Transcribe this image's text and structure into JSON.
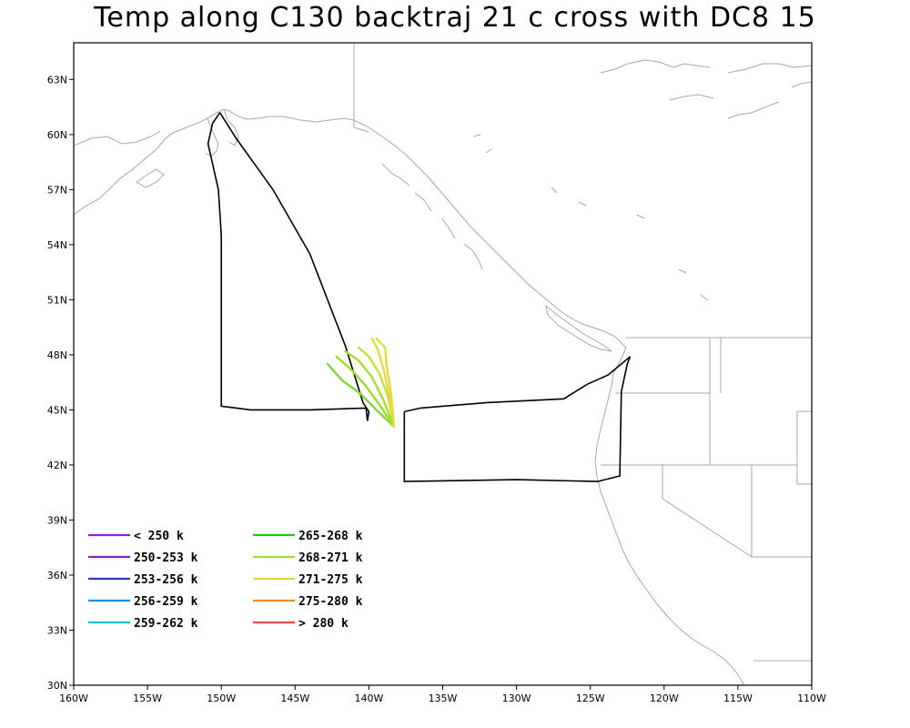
{
  "title": "Temp along C130 backtraj 21 c cross with DC8 15",
  "map": {
    "lon_range": [
      -160,
      -110
    ],
    "lat_range": [
      30,
      65
    ],
    "x_ticks": [
      {
        "lon": -160,
        "label": "160W"
      },
      {
        "lon": -155,
        "label": "155W"
      },
      {
        "lon": -150,
        "label": "150W"
      },
      {
        "lon": -145,
        "label": "145W"
      },
      {
        "lon": -140,
        "label": "140W"
      },
      {
        "lon": -135,
        "label": "135W"
      },
      {
        "lon": -130,
        "label": "130W"
      },
      {
        "lon": -125,
        "label": "125W"
      },
      {
        "lon": -120,
        "label": "120W"
      },
      {
        "lon": -115,
        "label": "115W"
      },
      {
        "lon": -110,
        "label": "110W"
      }
    ],
    "y_ticks": [
      {
        "lat": 30,
        "label": "30N"
      },
      {
        "lat": 33,
        "label": "33N"
      },
      {
        "lat": 36,
        "label": "36N"
      },
      {
        "lat": 39,
        "label": "39N"
      },
      {
        "lat": 42,
        "label": "42N"
      },
      {
        "lat": 45,
        "label": "45N"
      },
      {
        "lat": 48,
        "label": "48N"
      },
      {
        "lat": 51,
        "label": "51N"
      },
      {
        "lat": 54,
        "label": "54N"
      },
      {
        "lat": 57,
        "label": "57N"
      },
      {
        "lat": 60,
        "label": "60N"
      },
      {
        "lat": 63,
        "label": "63N"
      }
    ],
    "colors": {
      "coast": "#a8a8a8",
      "track": "#000000"
    }
  },
  "flight_track": [
    [
      -150.1,
      61.2
    ],
    [
      -150.6,
      60.6
    ],
    [
      -150.9,
      59.5
    ],
    [
      -150.2,
      57.0
    ],
    [
      -150.0,
      54.5
    ],
    [
      -150.0,
      45.2
    ],
    [
      -148.0,
      45.0
    ],
    [
      -144.0,
      45.0
    ],
    [
      -140.2,
      45.1
    ],
    [
      -140.1,
      44.4
    ],
    [
      -140.0,
      44.9
    ],
    [
      -140.4,
      45.4
    ],
    [
      -141.6,
      48.5
    ],
    [
      -144.0,
      53.5
    ],
    [
      -146.5,
      57.0
    ],
    [
      -149.0,
      59.8
    ],
    [
      -150.1,
      61.2
    ],
    null,
    [
      -137.6,
      44.9
    ],
    [
      -136.5,
      45.1
    ],
    [
      -132.0,
      45.4
    ],
    [
      -126.8,
      45.6
    ],
    [
      -125.2,
      46.4
    ],
    [
      -123.8,
      46.9
    ],
    [
      -122.3,
      47.9
    ],
    [
      -122.5,
      47.5
    ],
    [
      -122.9,
      46.0
    ],
    [
      -123.0,
      41.4
    ],
    [
      -124.5,
      41.1
    ],
    [
      -130.0,
      41.2
    ],
    [
      -137.6,
      41.1
    ],
    [
      -137.6,
      44.9
    ]
  ],
  "trajectories": [
    {
      "color": "#7fd63a",
      "points": [
        [
          -138.3,
          44.1
        ],
        [
          -139.5,
          45.0
        ],
        [
          -140.6,
          45.9
        ],
        [
          -141.8,
          46.6
        ],
        [
          -142.8,
          47.5
        ]
      ]
    },
    {
      "color": "#9bdc2f",
      "points": [
        [
          -138.3,
          44.1
        ],
        [
          -139.3,
          45.3
        ],
        [
          -140.3,
          46.4
        ],
        [
          -141.2,
          47.2
        ],
        [
          -142.2,
          47.9
        ]
      ]
    },
    {
      "color": "#a8de33",
      "points": [
        [
          -138.3,
          44.1
        ],
        [
          -139.0,
          45.5
        ],
        [
          -139.8,
          46.8
        ],
        [
          -140.7,
          47.7
        ],
        [
          -141.6,
          48.2
        ]
      ]
    },
    {
      "color": "#c7e03a",
      "points": [
        [
          -138.3,
          44.1
        ],
        [
          -138.7,
          45.7
        ],
        [
          -139.3,
          47.0
        ],
        [
          -140.0,
          47.9
        ],
        [
          -140.7,
          48.4
        ]
      ]
    },
    {
      "color": "#e0dc3a",
      "points": [
        [
          -138.3,
          44.1
        ],
        [
          -138.6,
          45.7
        ],
        [
          -139.0,
          47.2
        ],
        [
          -139.4,
          48.3
        ],
        [
          -139.8,
          48.9
        ]
      ]
    },
    {
      "color": "#e8da36",
      "points": [
        [
          -138.3,
          44.1
        ],
        [
          -138.5,
          45.9
        ],
        [
          -138.8,
          47.4
        ],
        [
          -138.9,
          48.4
        ],
        [
          -139.5,
          48.9
        ]
      ]
    }
  ],
  "legend": [
    {
      "label": "< 250 k",
      "color": "#9b1fd6"
    },
    {
      "label": "250-253 k",
      "color": "#8a1ec8"
    },
    {
      "label": "253-256 k",
      "color": "#2a3cc6"
    },
    {
      "label": "256-259 k",
      "color": "#1f8ee0"
    },
    {
      "label": "259-262 k",
      "color": "#18c0d6"
    },
    {
      "label": "265-268 k",
      "color": "#18c81e"
    },
    {
      "label": "268-271 k",
      "color": "#a3dc38"
    },
    {
      "label": "271-275 k",
      "color": "#e0d83a"
    },
    {
      "label": "275-280 k",
      "color": "#f08a2a"
    },
    {
      "label": "> 280 k",
      "color": "#f04a40"
    }
  ]
}
